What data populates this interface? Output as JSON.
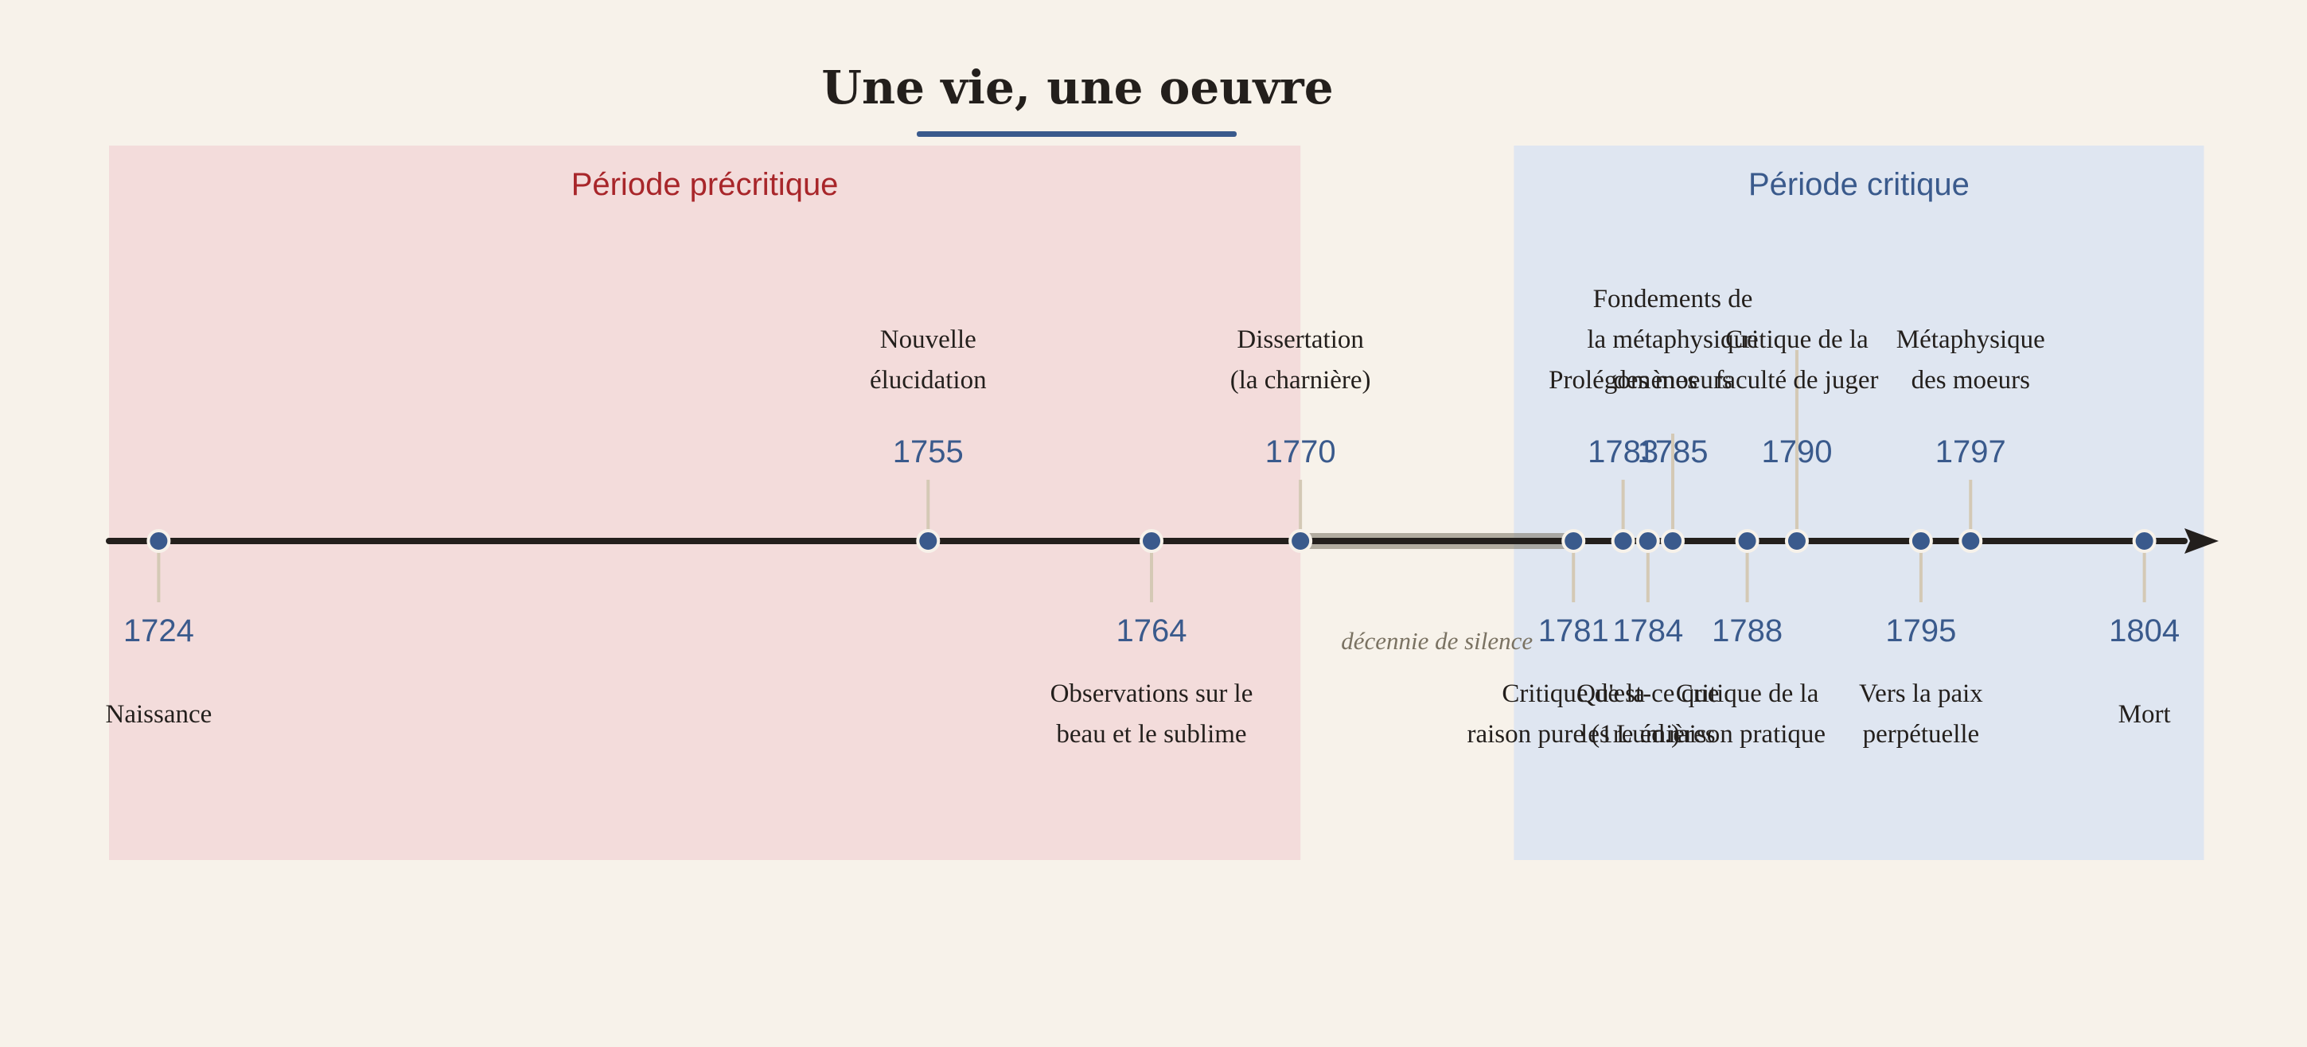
{
  "title": "Une vie, une oeuvre",
  "colors": {
    "background": "#f7f2ea",
    "accent": "#3a5a8c",
    "precritical_band": "#f3dcdb",
    "precritical_text": "#a8262a",
    "critical_band": "#dfe6f1",
    "critical_text": "#3a5a8c",
    "axis": "#231f1c",
    "stem": "#d4c9b5",
    "gap": "#7a7262",
    "label": "#231f1c"
  },
  "periods": [
    {
      "label": "Période précritique",
      "from": 1722.0,
      "to": 1770.0,
      "tone": "precritical"
    },
    {
      "label": "Période critique",
      "from": 1778.6,
      "to": 1806.4,
      "tone": "critical"
    }
  ],
  "gap": {
    "from": 1770,
    "to": 1781,
    "note": "décennie de silence"
  },
  "axis": {
    "min": 1722,
    "max": 1806
  },
  "events": [
    {
      "year": 1724,
      "label": [
        "Naissance"
      ],
      "side": "below"
    },
    {
      "year": 1755,
      "label": [
        "Nouvelle",
        "élucidation"
      ],
      "side": "above"
    },
    {
      "year": 1764,
      "label": [
        "Observations sur le",
        "beau et le sublime"
      ],
      "side": "below"
    },
    {
      "year": 1770,
      "label": [
        "Dissertation",
        "(la charnière)"
      ],
      "side": "above"
    },
    {
      "year": 1781,
      "label": [
        "Critique de la",
        "raison pure (1re éd.)"
      ],
      "side": "below"
    },
    {
      "year": 1783,
      "label": [
        "Prolégomènes"
      ],
      "side": "above"
    },
    {
      "year": 1784,
      "label": [
        "Qu'est-ce que",
        "les Lumières"
      ],
      "side": "below"
    },
    {
      "year": 1785,
      "label": [
        "Fondements de",
        "la métaphysique",
        "des moeurs"
      ],
      "side": "above"
    },
    {
      "year": 1788,
      "label": [
        "Critique de la",
        "raison pratique"
      ],
      "side": "below"
    },
    {
      "year": 1790,
      "label": [
        "Critique de la",
        "faculté de juger"
      ],
      "side": "above"
    },
    {
      "year": 1795,
      "label": [
        "Vers la paix",
        "perpétuelle"
      ],
      "side": "below"
    },
    {
      "year": 1797,
      "label": [
        "Métaphysique",
        "des moeurs"
      ],
      "side": "above"
    },
    {
      "year": 1804,
      "label": [
        "Mort"
      ],
      "side": "below"
    }
  ]
}
